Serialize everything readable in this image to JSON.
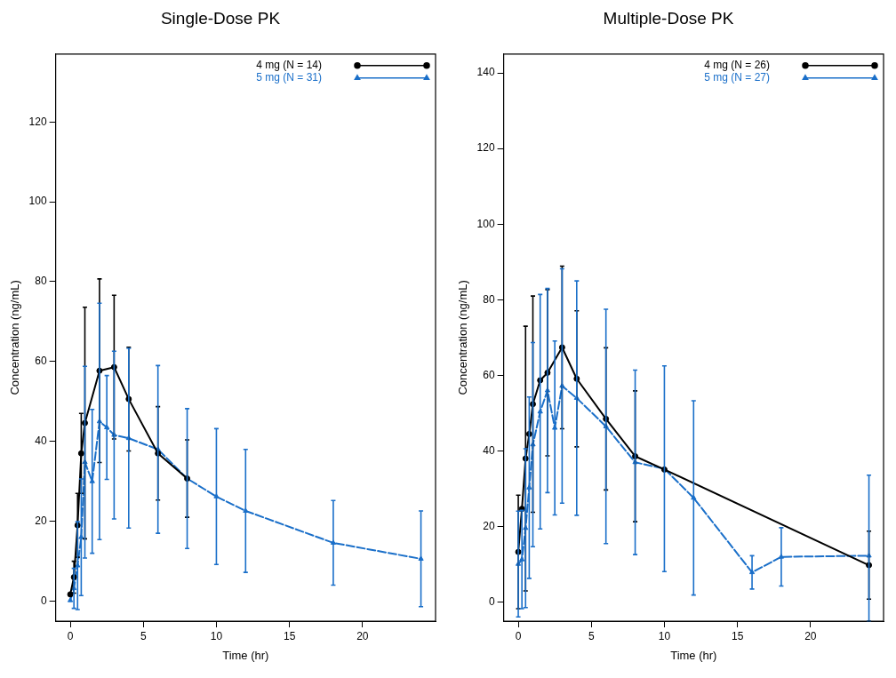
{
  "chart_data": [
    {
      "type": "line",
      "title": "Single-Dose PK",
      "xlabel": "Time (hr)",
      "ylabel": "Concentration (ng/mL)",
      "xlim": [
        -1,
        25
      ],
      "xticks": [
        0,
        5,
        10,
        15,
        20
      ],
      "ylim": [
        -5,
        137
      ],
      "yticks": [
        0,
        20,
        40,
        60,
        80,
        100,
        120
      ],
      "grid": false,
      "legend": "top right",
      "series": [
        {
          "name": "4 mg (N = 14)",
          "color": "#000000",
          "marker": "circle",
          "line_style": "solid",
          "x": [
            0,
            0.25,
            0.5,
            0.75,
            1,
            2,
            3,
            4,
            6,
            8
          ],
          "values": [
            1.7,
            6,
            19,
            37,
            44.6,
            57.7,
            58.6,
            50.6,
            37,
            30.7
          ],
          "errors": [
            null,
            4,
            8,
            10,
            29,
            23,
            18,
            13,
            11.7,
            9.7
          ]
        },
        {
          "name": "5 mg (N = 31)",
          "color": "#1a6fc9",
          "marker": "triangle",
          "line_style": "dashed",
          "x": [
            0,
            0.25,
            0.5,
            0.75,
            1,
            1.5,
            2,
            2.5,
            3,
            4,
            6,
            8,
            10,
            12,
            18,
            24
          ],
          "values": [
            0.2,
            3.2,
            8.9,
            16,
            34.8,
            30,
            45,
            43.5,
            41.6,
            40.8,
            38,
            30.7,
            26.2,
            22.6,
            14.6,
            10.6
          ],
          "errors": [
            null,
            5,
            11,
            14.6,
            24,
            18,
            29.6,
            13,
            21,
            22.5,
            21,
            17.5,
            17,
            15.4,
            10.6,
            12
          ]
        }
      ]
    },
    {
      "type": "line",
      "title": "Multiple-Dose PK",
      "xlabel": "Time (hr)",
      "ylabel": "Concentration (ng/mL)",
      "xlim": [
        -1,
        25
      ],
      "xticks": [
        0,
        5,
        10,
        15,
        20
      ],
      "ylim": [
        -5,
        145
      ],
      "yticks": [
        0,
        20,
        40,
        60,
        80,
        100,
        120,
        140
      ],
      "grid": false,
      "legend": "top right",
      "series": [
        {
          "name": "4 mg (N = 26)",
          "color": "#000000",
          "marker": "circle",
          "line_style": "solid",
          "x": [
            0,
            0.25,
            0.5,
            0.75,
            1,
            1.5,
            2,
            3,
            4,
            6,
            8,
            10,
            24
          ],
          "values": [
            13.3,
            24.7,
            38,
            44.5,
            52.4,
            58.7,
            60.7,
            67.4,
            59.1,
            48.5,
            38.6,
            35.1,
            9.8
          ],
          "errors": [
            15,
            null,
            35,
            null,
            28.6,
            null,
            22,
            21.5,
            18,
            18.8,
            17.3,
            null,
            9
          ]
        },
        {
          "name": "5 mg (N = 27)",
          "color": "#1a6fc9",
          "marker": "triangle",
          "line_style": "dashed",
          "x": [
            0,
            0.25,
            0.5,
            0.75,
            1,
            1.5,
            2,
            2.5,
            3,
            4,
            6,
            8,
            10,
            12,
            16,
            18,
            24
          ],
          "values": [
            10.1,
            11.3,
            19.6,
            30.3,
            41.7,
            50.4,
            56,
            46.1,
            57.2,
            54,
            46.5,
            37,
            35.3,
            27.6,
            7.9,
            12,
            12.3
          ],
          "errors": [
            14,
            13,
            21,
            24,
            27,
            31,
            27,
            23,
            31,
            31,
            31,
            24.4,
            27.2,
            25.7,
            4.4,
            7.7,
            [
              -5,
              33.6
            ]
          ]
        }
      ]
    }
  ]
}
